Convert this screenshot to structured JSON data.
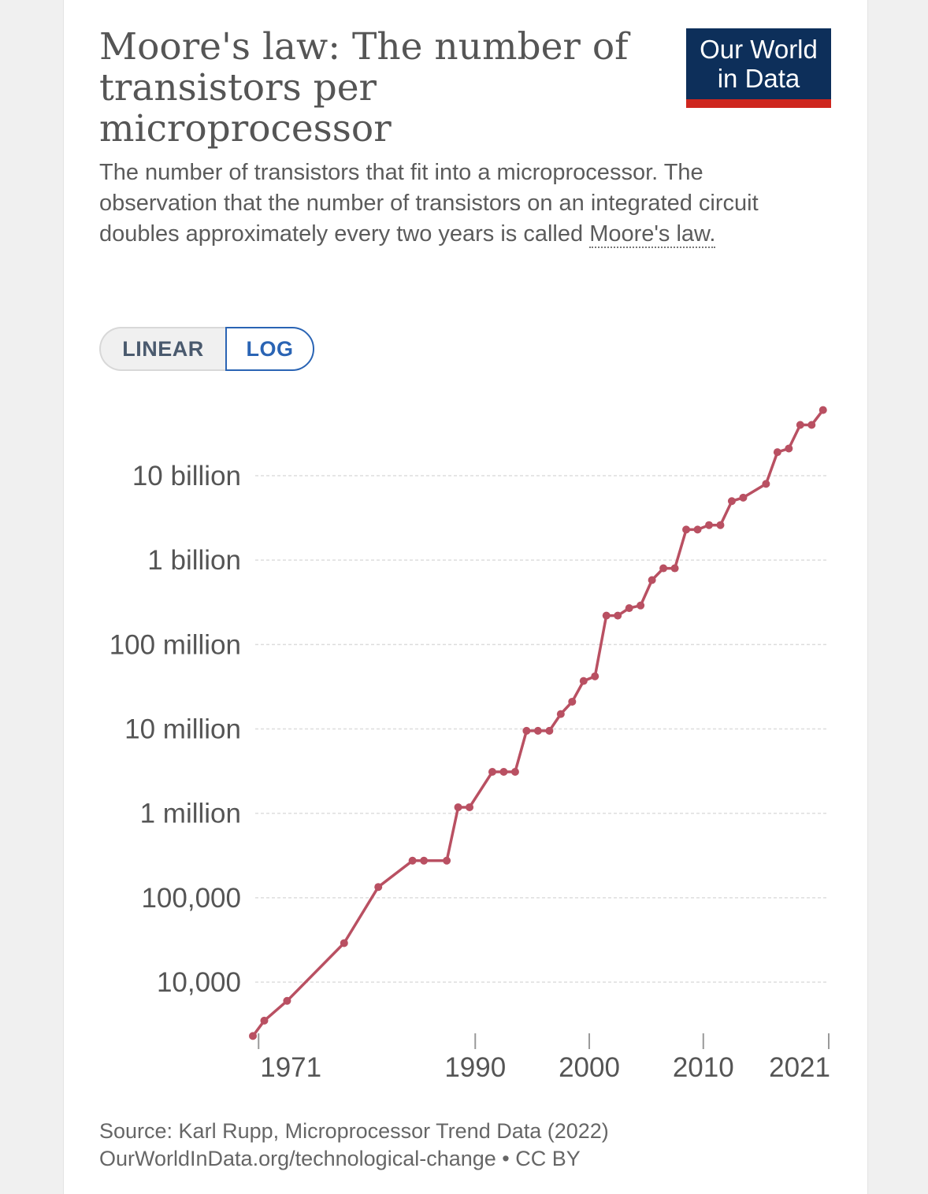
{
  "header": {
    "title": "Moore's law: The number of transistors per microprocessor",
    "subtitle_text": "The number of transistors that fit into a microprocessor. The observation that the number of transistors on an integrated circuit doubles approximately every two years is called ",
    "subtitle_link": "Moore's law.",
    "logo_line1": "Our World",
    "logo_line2": "in Data"
  },
  "scale_toggle": {
    "linear_label": "LINEAR",
    "log_label": "LOG",
    "selected": "LOG"
  },
  "footer": {
    "source": "Source: Karl Rupp, Microprocessor Trend Data (2022)",
    "license": "OurWorldInData.org/technological-change • CC BY"
  },
  "colors": {
    "series": "#b95062",
    "grid": "#dddddd",
    "tick_text": "#555555"
  },
  "chart_data": {
    "type": "line",
    "title": "Moore's law: The number of transistors per microprocessor",
    "xlabel": "",
    "ylabel": "",
    "yscale": "log",
    "grid": true,
    "xlim": [
      1970.5,
      2021
    ],
    "ylim": [
      2000,
      100000000000
    ],
    "x_ticks": [
      1971,
      1990,
      2000,
      2010,
      2021
    ],
    "y_ticks": [
      {
        "value": 10000,
        "label": "10,000"
      },
      {
        "value": 100000,
        "label": "100,000"
      },
      {
        "value": 1000000,
        "label": "1 million"
      },
      {
        "value": 10000000,
        "label": "10 million"
      },
      {
        "value": 100000000,
        "label": "100 million"
      },
      {
        "value": 1000000000,
        "label": "1 billion"
      },
      {
        "value": 10000000000,
        "label": "10 billion"
      }
    ],
    "series": [
      {
        "points": [
          {
            "x": 1970.5,
            "y": 2300
          },
          {
            "x": 1971.5,
            "y": 3500
          },
          {
            "x": 1973.5,
            "y": 6000
          },
          {
            "x": 1978.5,
            "y": 29000
          },
          {
            "x": 1981.5,
            "y": 134000
          },
          {
            "x": 1984.5,
            "y": 275000
          },
          {
            "x": 1985.5,
            "y": 275000
          },
          {
            "x": 1987.5,
            "y": 275000
          },
          {
            "x": 1988.5,
            "y": 1180000
          },
          {
            "x": 1989.5,
            "y": 1180000
          },
          {
            "x": 1991.5,
            "y": 3100000
          },
          {
            "x": 1992.5,
            "y": 3100000
          },
          {
            "x": 1993.5,
            "y": 3100000
          },
          {
            "x": 1994.5,
            "y": 9500000
          },
          {
            "x": 1995.5,
            "y": 9500000
          },
          {
            "x": 1996.5,
            "y": 9500000
          },
          {
            "x": 1997.5,
            "y": 15000000
          },
          {
            "x": 1998.5,
            "y": 21000000
          },
          {
            "x": 1999.5,
            "y": 37000000
          },
          {
            "x": 2000.5,
            "y": 42000000
          },
          {
            "x": 2001.5,
            "y": 220000000
          },
          {
            "x": 2002.5,
            "y": 220000000
          },
          {
            "x": 2003.5,
            "y": 270000000
          },
          {
            "x": 2004.5,
            "y": 290000000
          },
          {
            "x": 2005.5,
            "y": 580000000
          },
          {
            "x": 2006.5,
            "y": 800000000
          },
          {
            "x": 2007.5,
            "y": 800000000
          },
          {
            "x": 2008.5,
            "y": 2300000000
          },
          {
            "x": 2009.5,
            "y": 2300000000
          },
          {
            "x": 2010.5,
            "y": 2600000000
          },
          {
            "x": 2011.5,
            "y": 2600000000
          },
          {
            "x": 2012.5,
            "y": 5000000000
          },
          {
            "x": 2013.5,
            "y": 5500000000
          },
          {
            "x": 2015.5,
            "y": 8000000000
          },
          {
            "x": 2016.5,
            "y": 19000000000
          },
          {
            "x": 2017.5,
            "y": 21000000000
          },
          {
            "x": 2018.5,
            "y": 40000000000
          },
          {
            "x": 2019.5,
            "y": 40000000000
          },
          {
            "x": 2020.5,
            "y": 60000000000
          }
        ]
      }
    ]
  }
}
